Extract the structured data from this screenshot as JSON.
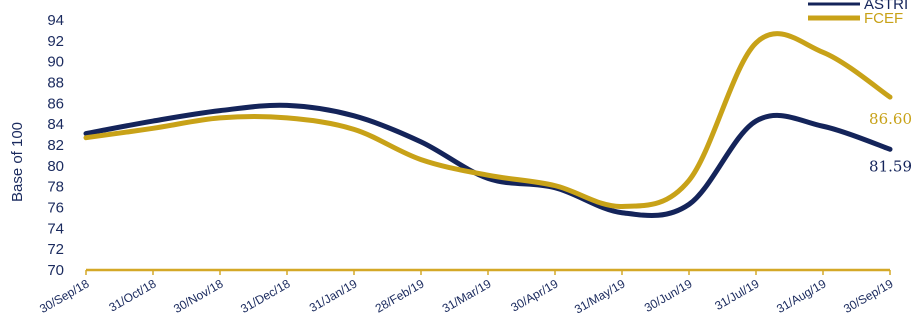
{
  "chart_data": {
    "type": "line",
    "xlabel": "",
    "ylabel": "Base of 100",
    "ylim": [
      70,
      94
    ],
    "yticks": [
      70,
      72,
      74,
      76,
      78,
      80,
      82,
      84,
      86,
      88,
      90,
      92,
      94
    ],
    "categories": [
      "30/Sep/18",
      "31/Oct/18",
      "30/Nov/18",
      "31/Dec/18",
      "31/Jan/19",
      "28/Feb/19",
      "31/Mar/19",
      "30/Apr/19",
      "31/May/19",
      "30/Jun/19",
      "31/Jul/19",
      "31/Aug/19",
      "30/Sep/19"
    ],
    "series": [
      {
        "name": "ASTRI",
        "color": "#14245a",
        "values": [
          83.1,
          84.3,
          85.3,
          85.8,
          84.8,
          82.3,
          78.8,
          77.9,
          75.5,
          76.3,
          84.3,
          83.8,
          81.59
        ],
        "end_label": "81.59"
      },
      {
        "name": "FCEF",
        "color": "#c8a218",
        "values": [
          82.7,
          83.6,
          84.6,
          84.6,
          83.5,
          80.6,
          79.1,
          78.1,
          76.1,
          78.6,
          91.8,
          90.9,
          86.6
        ],
        "end_label": "86.60"
      }
    ],
    "axis_color": "#d4a827",
    "legend_position": "top-right",
    "grid": false
  }
}
